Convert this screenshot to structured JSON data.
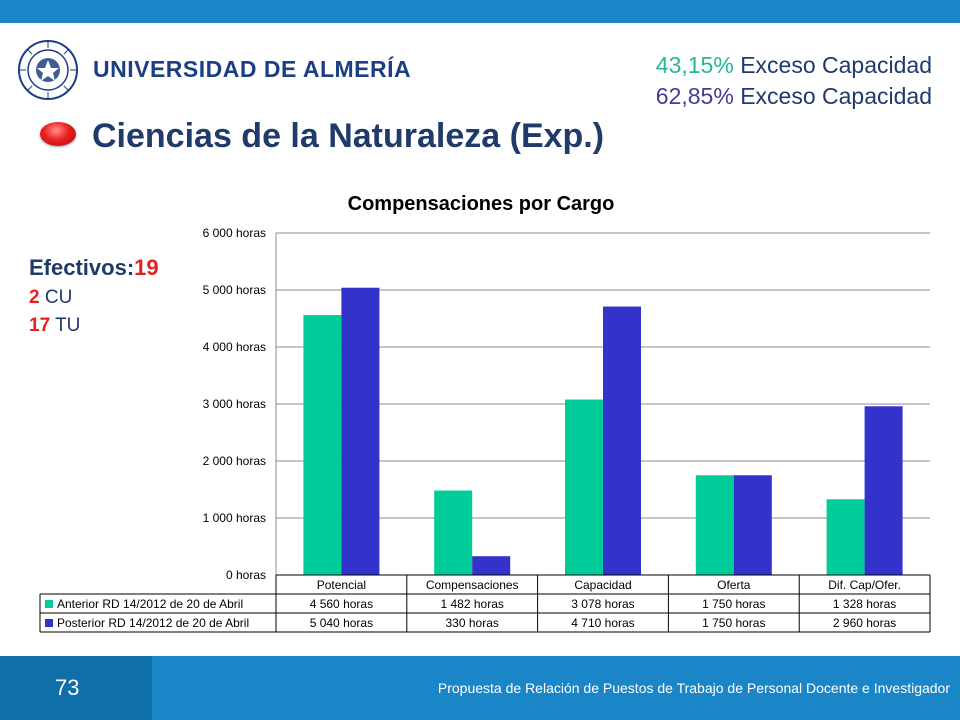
{
  "header": {
    "university": "UNIVERSIDAD DE ALMERÍA",
    "exceso": [
      {
        "pct": "43,15%",
        "label": " Exceso Capacidad"
      },
      {
        "pct": "62,85%",
        "label": " Exceso Capacidad"
      }
    ]
  },
  "slide_title": "Ciencias de la Naturaleza (Exp.)",
  "efectivos": {
    "heading": "Efectivos:",
    "total": "19",
    "rows": [
      {
        "n": "2",
        "label": " CU"
      },
      {
        "n": "17",
        "label": " TU"
      }
    ]
  },
  "chart_data": {
    "type": "bar",
    "title": "Compensaciones por Cargo",
    "categories": [
      "Potencial",
      "Compensaciones",
      "Capacidad",
      "Oferta",
      "Dif. Cap/Ofer."
    ],
    "ylim": [
      0,
      6000
    ],
    "yticks": [
      0,
      1000,
      2000,
      3000,
      4000,
      5000,
      6000
    ],
    "ytick_labels": [
      "0 horas",
      "1 000 horas",
      "2 000 horas",
      "3 000 horas",
      "4 000 horas",
      "5 000 horas",
      "6 000 horas"
    ],
    "grid": true,
    "series": [
      {
        "name": "Anterior RD 14/2012 de 20 de Abril",
        "color": "#00cc99",
        "values": [
          4560,
          1482,
          3078,
          1750,
          1328
        ],
        "labels": [
          "4 560 horas",
          "1 482 horas",
          "3 078 horas",
          "1 750 horas",
          "1 328 horas"
        ]
      },
      {
        "name": "Posterior RD 14/2012 de 20 de Abril",
        "color": "#3333cc",
        "values": [
          5040,
          330,
          4710,
          1750,
          2960
        ],
        "labels": [
          "5 040 horas",
          "330 horas",
          "4 710 horas",
          "1 750 horas",
          "2 960 horas"
        ]
      }
    ]
  },
  "footer": {
    "page_number": "73",
    "text": "Propuesta de Relación de Puestos de Trabajo de Personal Docente e Investigador"
  },
  "colors": {
    "brand_blue": "#1a86c8",
    "title_navy": "#1f3a6b",
    "accent_red": "#e8201d"
  }
}
